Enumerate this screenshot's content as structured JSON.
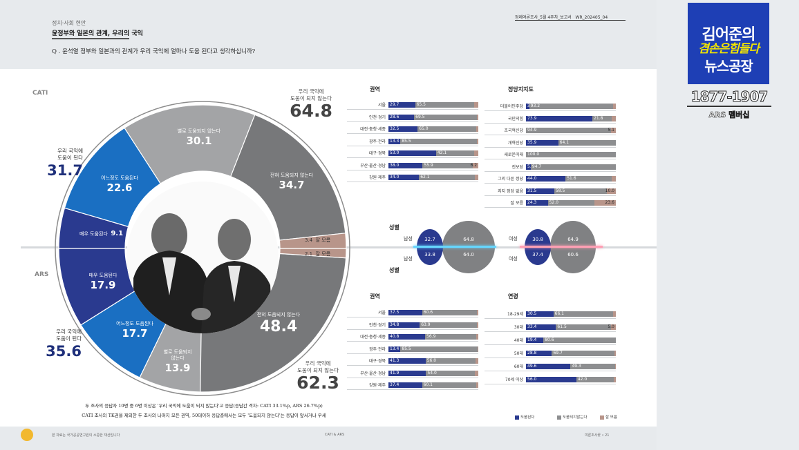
{
  "header": {
    "category": "정치·사회 현안",
    "title": "윤정부와 일본의 관계, 우리의 국익",
    "question": "Q . 윤석열 정부와 일본과의 관계가 우리 국익에 얼마나 도움 된다고 생각하십니까?",
    "report_label": "정례여론조사_5월 4주차_보고서",
    "report_code": "WR_202405_04"
  },
  "side_labels": {
    "cati": "CATI",
    "ars": "ARS"
  },
  "donut": {
    "cati_not_helpful_label": "우리 국익에\n도움이 되지 않는다",
    "cati_not_helpful_value": "64.8",
    "cati_helpful_label": "우리 국익에\n도움이 된다",
    "cati_helpful_value": "31.7",
    "ars_helpful_label": "우리 국익에\n도움이 된다",
    "ars_helpful_value": "35.6",
    "ars_not_helpful_label": "우리 국익에\n도움이 되지 않는다",
    "ars_not_helpful_value": "62.3",
    "segments": {
      "cati_not_much": {
        "label": "별로 도움되지 않는다",
        "value": "30.1"
      },
      "cati_not_at_all": {
        "label": "전혀 도움되지 않는다",
        "value": "34.7"
      },
      "cati_somewhat": {
        "label": "어느정도 도움된다",
        "value": "22.6"
      },
      "cati_very": {
        "label": "매우 도움된다",
        "value": "9.1"
      },
      "cati_unsure": {
        "label": "잘 모름",
        "value": "3.4"
      },
      "ars_unsure": {
        "label": "잘 모름",
        "value": "2.1"
      },
      "ars_very": {
        "label": "매우 도움된다",
        "value": "17.9"
      },
      "ars_somewhat": {
        "label": "어느정도 도움된다",
        "value": "17.7"
      },
      "ars_not_much": {
        "label": "별로 도움되지\n않는다",
        "value": "13.9"
      },
      "ars_not_at_all": {
        "label": "전혀 도움되지 않는다",
        "value": "48.4"
      }
    }
  },
  "colors": {
    "navy": "#2a3a8f",
    "blue": "#1a6fc2",
    "light_gray": "#a3a4a6",
    "dark_gray": "#77787a",
    "tan": "#b8958a"
  },
  "sections": {
    "region_top": "권역",
    "party": "정당지지도",
    "sex_top": "성별",
    "sex_bottom": "성별",
    "region_bottom": "권역",
    "age": "연령"
  },
  "sex": {
    "cati_male": {
      "label": "남성",
      "help": "32.7",
      "not": "64.8"
    },
    "ars_male": {
      "label": "남성",
      "help": "33.8",
      "not": "64.0"
    },
    "cati_female": {
      "label": "여성",
      "help": "30.8",
      "not": "64.9"
    },
    "ars_female": {
      "label": "여성",
      "help": "37.4",
      "not": "60.6"
    }
  },
  "footnote": {
    "line1": "두 조사의 응답자 10명 중 6명 이상은 '우리 국익에 도움이 되지 않는다'고 응답(응답간 격차: CATI 33.1%p, ARS 26.7%p)",
    "line2": "CATI 조사의 TK권을 제외한 두 조사의 나머지 모든 권역, 50대이하 응답층에서는 모두 '도움되지 않는다'는 응답이 앞서거나 우세"
  },
  "page_footer": {
    "left": "본 자료는 국가공공연구원의 소중한 재산입니다",
    "center": "CATI & ARS",
    "right": "여론조사꽃 • 21"
  },
  "legend": {
    "help": "도움된다",
    "not": "도움되지않는다",
    "unsure": "잘 모름"
  },
  "brand": {
    "line1": "김어준의",
    "line2": "겸손은힘들다",
    "line3": "뉴스공장",
    "years": "1877-1907",
    "ars_member": "ARS 멤버십"
  },
  "chart_data": [
    {
      "type": "pie",
      "title": "CATI",
      "categories": [
        "매우 도움된다",
        "어느정도 도움된다",
        "별로 도움되지 않는다",
        "전혀 도움되지 않는다",
        "잘 모름"
      ],
      "values": [
        9.1,
        22.6,
        30.1,
        34.7,
        3.4
      ],
      "totals": {
        "helpful": 31.7,
        "not_helpful": 64.8
      }
    },
    {
      "type": "pie",
      "title": "ARS",
      "categories": [
        "매우 도움된다",
        "어느정도 도움된다",
        "별로 도움되지 않는다",
        "전혀 도움되지 않는다",
        "잘 모름"
      ],
      "values": [
        17.9,
        17.7,
        13.9,
        48.4,
        2.1
      ],
      "totals": {
        "helpful": 35.6,
        "not_helpful": 62.3
      }
    },
    {
      "type": "bar",
      "title": "권역 (CATI)",
      "categories": [
        "서울",
        "인천·경기",
        "대전·충청·세종",
        "광주·전라",
        "대구·경북",
        "부산·울산·경남",
        "강원·제주"
      ],
      "series": [
        {
          "name": "도움된다",
          "values": [
            29.7,
            28.6,
            32.5,
            13.3,
            53.0,
            38.0,
            34.0
          ]
        },
        {
          "name": "도움되지않는다",
          "values": [
            65.5,
            69.5,
            65.0,
            85.5,
            42.1,
            55.9,
            62.1
          ]
        },
        {
          "name": "잘 모름",
          "values": [
            4.8,
            1.9,
            2.5,
            1.2,
            4.9,
            6.2,
            3.9
          ]
        }
      ]
    },
    {
      "type": "bar",
      "title": "정당지지도",
      "categories": [
        "더불어민주당",
        "국민의힘",
        "조국혁신당",
        "개혁신당",
        "새로운미래",
        "진보당",
        "그외 다른 정당",
        "지지 정당 없음",
        "잘 모름"
      ],
      "series": [
        {
          "name": "도움된다",
          "values": [
            3.6,
            73.9,
            0,
            35.9,
            0,
            5.3,
            44.0,
            31.5,
            24.3
          ]
        },
        {
          "name": "도움되지않는다",
          "values": [
            93.2,
            21.8,
            94.9,
            64.1,
            100.0,
            94.7,
            51.6,
            58.5,
            52.0
          ]
        },
        {
          "name": "잘 모름",
          "values": [
            3.2,
            4.3,
            5.1,
            0,
            0,
            0,
            4.4,
            10.0,
            23.6
          ]
        }
      ]
    },
    {
      "type": "bar",
      "title": "권역 (ARS)",
      "categories": [
        "서울",
        "인천·경기",
        "대전·충청·세종",
        "광주·전라",
        "대구·경북",
        "부산·울산·경남",
        "강원·제주"
      ],
      "series": [
        {
          "name": "도움된다",
          "values": [
            37.5,
            34.8,
            40.8,
            13.4,
            41.3,
            41.9,
            37.4
          ]
        },
        {
          "name": "도움되지않는다",
          "values": [
            60.6,
            63.9,
            56.9,
            85.5,
            56.0,
            54.0,
            60.1
          ]
        },
        {
          "name": "잘 모름",
          "values": [
            1.9,
            1.3,
            2.3,
            1.1,
            2.7,
            4.1,
            2.5
          ]
        }
      ]
    },
    {
      "type": "bar",
      "title": "연령",
      "categories": [
        "18-29세",
        "30대",
        "40대",
        "50대",
        "60대",
        "70세 이상"
      ],
      "series": [
        {
          "name": "도움된다",
          "values": [
            30.5,
            33.4,
            19.4,
            28.8,
            49.6,
            56.0
          ]
        },
        {
          "name": "도움되지않는다",
          "values": [
            66.1,
            61.5,
            80.6,
            69.7,
            49.3,
            42.0
          ]
        },
        {
          "name": "잘 모름",
          "values": [
            3.4,
            5.0,
            0,
            1.5,
            1.1,
            2.0
          ]
        }
      ]
    }
  ]
}
